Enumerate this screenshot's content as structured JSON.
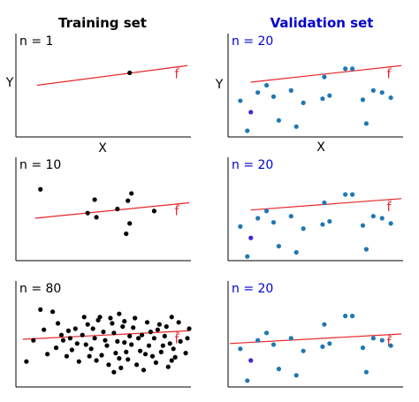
{
  "figure": {
    "columns": [
      {
        "title": "Training set",
        "color": "#000000"
      },
      {
        "title": "Validation set",
        "color": "#0000cc"
      }
    ],
    "axis_labels": {
      "x": "X",
      "y": "Y"
    },
    "fit_label": "f̂",
    "fit_color": "#e8262a",
    "train_point_color": "#000000",
    "val_point_color": "#1f77b4",
    "val_highlight_color": "#3a2bd6"
  },
  "chart_data": [
    {
      "type": "scatter",
      "panel": "training-1",
      "label": "n = 1",
      "xlim": [
        0,
        10
      ],
      "ylim": [
        0,
        10
      ],
      "grid": false,
      "points": [
        [
          6.5,
          6.2
        ]
      ],
      "fit": {
        "x": [
          1.2,
          9.8
        ],
        "y": [
          5.0,
          6.9
        ]
      }
    },
    {
      "type": "scatter",
      "panel": "validation-1",
      "label": "n = 20",
      "xlim": [
        0,
        10
      ],
      "ylim": [
        0,
        10
      ],
      "grid": false,
      "points": [
        [
          0.7,
          3.5
        ],
        [
          1.7,
          4.3
        ],
        [
          2.2,
          5.0
        ],
        [
          3.6,
          4.5
        ],
        [
          4.3,
          3.3
        ],
        [
          5.5,
          5.8
        ],
        [
          6.7,
          6.6
        ],
        [
          7.1,
          6.6
        ],
        [
          7.7,
          3.6
        ],
        [
          9.3,
          3.8
        ],
        [
          2.9,
          1.6
        ],
        [
          5.4,
          3.7
        ],
        [
          1.3,
          2.4
        ],
        [
          1.1,
          0.6
        ],
        [
          3.9,
          1.0
        ],
        [
          8.3,
          4.5
        ],
        [
          7.9,
          1.3
        ],
        [
          2.6,
          3.9
        ],
        [
          5.8,
          4.0
        ],
        [
          8.8,
          4.3
        ]
      ],
      "highlight_index": 12,
      "fit": {
        "x": [
          1.3,
          9.9
        ],
        "y": [
          5.3,
          6.9
        ]
      }
    },
    {
      "type": "scatter",
      "panel": "training-2",
      "label": "n = 10",
      "xlim": [
        0,
        10
      ],
      "ylim": [
        0,
        10
      ],
      "grid": false,
      "points": [
        [
          1.4,
          6.9
        ],
        [
          4.5,
          5.9
        ],
        [
          4.1,
          4.6
        ],
        [
          4.6,
          4.2
        ],
        [
          5.8,
          5.0
        ],
        [
          6.4,
          5.8
        ],
        [
          6.6,
          6.5
        ],
        [
          6.5,
          3.6
        ],
        [
          6.3,
          2.6
        ],
        [
          7.9,
          4.8
        ]
      ],
      "fit": {
        "x": [
          1.1,
          9.9
        ],
        "y": [
          4.1,
          5.6
        ]
      }
    },
    {
      "type": "scatter",
      "panel": "validation-2",
      "label": "n = 20",
      "xlim": [
        0,
        10
      ],
      "ylim": [
        0,
        10
      ],
      "grid": false,
      "points": [
        [
          0.7,
          3.3
        ],
        [
          1.7,
          4.1
        ],
        [
          2.2,
          4.8
        ],
        [
          3.6,
          4.3
        ],
        [
          4.3,
          3.1
        ],
        [
          5.5,
          5.6
        ],
        [
          6.7,
          6.4
        ],
        [
          7.1,
          6.4
        ],
        [
          7.7,
          3.4
        ],
        [
          9.3,
          3.6
        ],
        [
          2.9,
          1.4
        ],
        [
          5.4,
          3.5
        ],
        [
          1.3,
          2.2
        ],
        [
          1.1,
          0.4
        ],
        [
          3.9,
          0.8
        ],
        [
          8.3,
          4.3
        ],
        [
          7.9,
          1.1
        ],
        [
          2.6,
          3.7
        ],
        [
          5.8,
          3.8
        ],
        [
          8.8,
          4.1
        ]
      ],
      "highlight_index": 12,
      "fit": {
        "x": [
          1.3,
          9.9
        ],
        "y": [
          4.9,
          6.0
        ]
      }
    },
    {
      "type": "scatter",
      "panel": "training-3",
      "label": "n = 80",
      "xlim": [
        0,
        10
      ],
      "ylim": [
        0,
        10
      ],
      "grid": false,
      "points": [
        [
          1.4,
          7.3
        ],
        [
          1.6,
          5.4
        ],
        [
          2.1,
          7.1
        ],
        [
          2.6,
          4.9
        ],
        [
          3.1,
          4.6
        ],
        [
          3.8,
          4.9
        ],
        [
          3.9,
          6.6
        ],
        [
          4.4,
          5.5
        ],
        [
          4.3,
          3.6
        ],
        [
          4.7,
          6.3
        ],
        [
          5.1,
          4.4
        ],
        [
          5.4,
          6.5
        ],
        [
          5.6,
          5.1
        ],
        [
          5.9,
          6.9
        ],
        [
          6.2,
          4.2
        ],
        [
          6.7,
          5.6
        ],
        [
          7.1,
          3.4
        ],
        [
          7.2,
          4.9
        ],
        [
          7.5,
          6.1
        ],
        [
          7.9,
          4.6
        ],
        [
          8.2,
          5.9
        ],
        [
          8.4,
          3.9
        ],
        [
          8.9,
          6.6
        ],
        [
          9.4,
          4.3
        ],
        [
          9.7,
          3.2
        ],
        [
          9.9,
          5.5
        ],
        [
          0.6,
          2.4
        ],
        [
          1.0,
          4.4
        ],
        [
          2.3,
          3.7
        ],
        [
          2.9,
          2.9
        ],
        [
          3.4,
          5.5
        ],
        [
          3.6,
          2.4
        ],
        [
          4.0,
          4.0
        ],
        [
          4.6,
          2.5
        ],
        [
          4.9,
          3.0
        ],
        [
          5.0,
          5.2
        ],
        [
          5.3,
          2.1
        ],
        [
          5.7,
          3.2
        ],
        [
          6.0,
          1.8
        ],
        [
          6.4,
          2.6
        ],
        [
          6.6,
          4.0
        ],
        [
          6.9,
          2.1
        ],
        [
          7.4,
          3.1
        ],
        [
          7.7,
          5.2
        ],
        [
          8.0,
          2.3
        ],
        [
          8.5,
          4.8
        ],
        [
          8.7,
          1.9
        ],
        [
          9.1,
          2.8
        ],
        [
          9.3,
          6.1
        ],
        [
          9.8,
          4.6
        ],
        [
          1.8,
          3.1
        ],
        [
          2.4,
          6.0
        ],
        [
          3.2,
          3.5
        ],
        [
          4.1,
          5.9
        ],
        [
          4.5,
          4.6
        ],
        [
          5.2,
          3.9
        ],
        [
          5.5,
          6.0
        ],
        [
          5.8,
          4.3
        ],
        [
          6.1,
          5.7
        ],
        [
          6.3,
          3.3
        ],
        [
          6.8,
          6.5
        ],
        [
          7.0,
          4.6
        ],
        [
          7.3,
          1.6
        ],
        [
          7.6,
          3.9
        ],
        [
          8.1,
          5.4
        ],
        [
          8.3,
          3.3
        ],
        [
          8.6,
          5.7
        ],
        [
          8.8,
          4.1
        ],
        [
          9.0,
          3.6
        ],
        [
          4.8,
          6.6
        ],
        [
          3.5,
          4.1
        ],
        [
          2.7,
          4.4
        ],
        [
          5.9,
          2.7
        ],
        [
          6.5,
          4.8
        ],
        [
          7.8,
          2.9
        ],
        [
          4.2,
          2.9
        ],
        [
          3.0,
          5.3
        ],
        [
          6.2,
          6.2
        ],
        [
          8.9,
          2.5
        ],
        [
          5.6,
          1.4
        ]
      ],
      "fit": {
        "x": [
          0.4,
          9.9
        ],
        "y": [
          4.5,
          5.3
        ]
      }
    },
    {
      "type": "scatter",
      "panel": "validation-3",
      "label": "n = 20",
      "xlim": [
        0,
        10
      ],
      "ylim": [
        0,
        10
      ],
      "grid": false,
      "points": [
        [
          0.7,
          3.6
        ],
        [
          1.7,
          4.4
        ],
        [
          2.2,
          5.1
        ],
        [
          3.6,
          4.6
        ],
        [
          4.3,
          3.4
        ],
        [
          5.5,
          5.9
        ],
        [
          6.7,
          6.7
        ],
        [
          7.1,
          6.7
        ],
        [
          7.7,
          3.7
        ],
        [
          9.3,
          3.9
        ],
        [
          2.9,
          1.7
        ],
        [
          5.4,
          3.8
        ],
        [
          1.3,
          2.5
        ],
        [
          1.1,
          0.6
        ],
        [
          3.9,
          1.1
        ],
        [
          8.3,
          4.6
        ],
        [
          7.9,
          1.4
        ],
        [
          2.6,
          4.0
        ],
        [
          5.8,
          4.1
        ],
        [
          8.8,
          4.4
        ]
      ],
      "highlight_index": 12,
      "fit": {
        "x": [
          0.1,
          9.9
        ],
        "y": [
          4.1,
          5.0
        ]
      }
    }
  ]
}
